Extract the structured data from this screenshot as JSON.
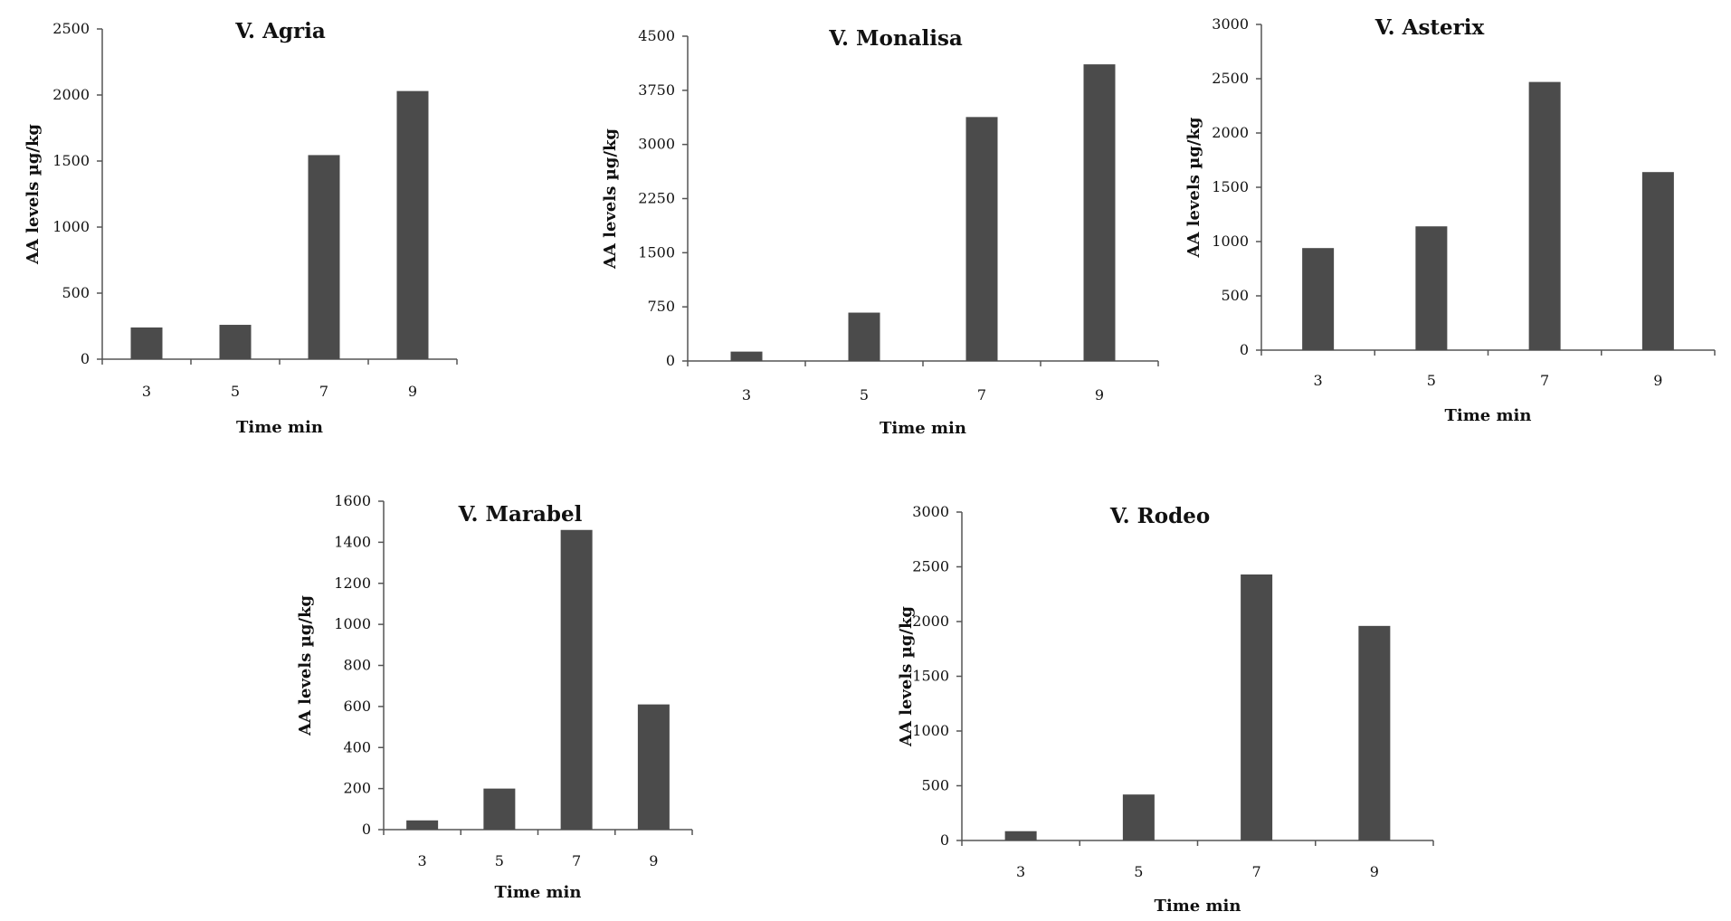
{
  "chart_data": [
    {
      "type": "bar",
      "title": "V. Agria",
      "xlabel": "Time min",
      "ylabel": "AA levels µg/kg",
      "categories": [
        "3",
        "5",
        "7",
        "9"
      ],
      "values": [
        240,
        260,
        1545,
        2030
      ],
      "ylim": [
        0,
        2500
      ],
      "yticks": [
        "0",
        "500",
        "1000",
        "1500",
        "2000",
        "2500"
      ],
      "grid": false
    },
    {
      "type": "bar",
      "title": "V. Monalisa",
      "xlabel": "Time min",
      "ylabel": "AA levels µg/kg",
      "categories": [
        "3",
        "5",
        "7",
        "9"
      ],
      "values": [
        130,
        670,
        3380,
        4110
      ],
      "ylim": [
        0,
        4500
      ],
      "yticks": [
        "0",
        "750",
        "1500",
        "2250",
        "3000",
        "3750",
        "4500"
      ],
      "grid": false
    },
    {
      "type": "bar",
      "title": "V. Asterix",
      "xlabel": "Time min",
      "ylabel": "AA levels µg/kg",
      "categories": [
        "3",
        "5",
        "7",
        "9"
      ],
      "values": [
        940,
        1140,
        2470,
        1640
      ],
      "ylim": [
        0,
        3000
      ],
      "yticks": [
        "0",
        "500",
        "1000",
        "1500",
        "2000",
        "2500",
        "3000"
      ],
      "grid": false
    },
    {
      "type": "bar",
      "title": "V. Marabel",
      "xlabel": "Time min",
      "ylabel": "AA levels µg/kg",
      "categories": [
        "3",
        "5",
        "7",
        "9"
      ],
      "values": [
        45,
        200,
        1460,
        610
      ],
      "ylim": [
        0,
        1600
      ],
      "yticks": [
        "0",
        "200",
        "400",
        "600",
        "800",
        "1000",
        "1200",
        "1400",
        "1600"
      ],
      "grid": false
    },
    {
      "type": "bar",
      "title": "V. Rodeo",
      "xlabel": "Time min",
      "ylabel": "AA levels µg/kg",
      "categories": [
        "3",
        "5",
        "7",
        "9"
      ],
      "values": [
        85,
        420,
        2430,
        1960
      ],
      "ylim": [
        0,
        3000
      ],
      "yticks": [
        "0",
        "500",
        "1000",
        "1500",
        "2000",
        "2500",
        "3000"
      ],
      "grid": false
    }
  ]
}
